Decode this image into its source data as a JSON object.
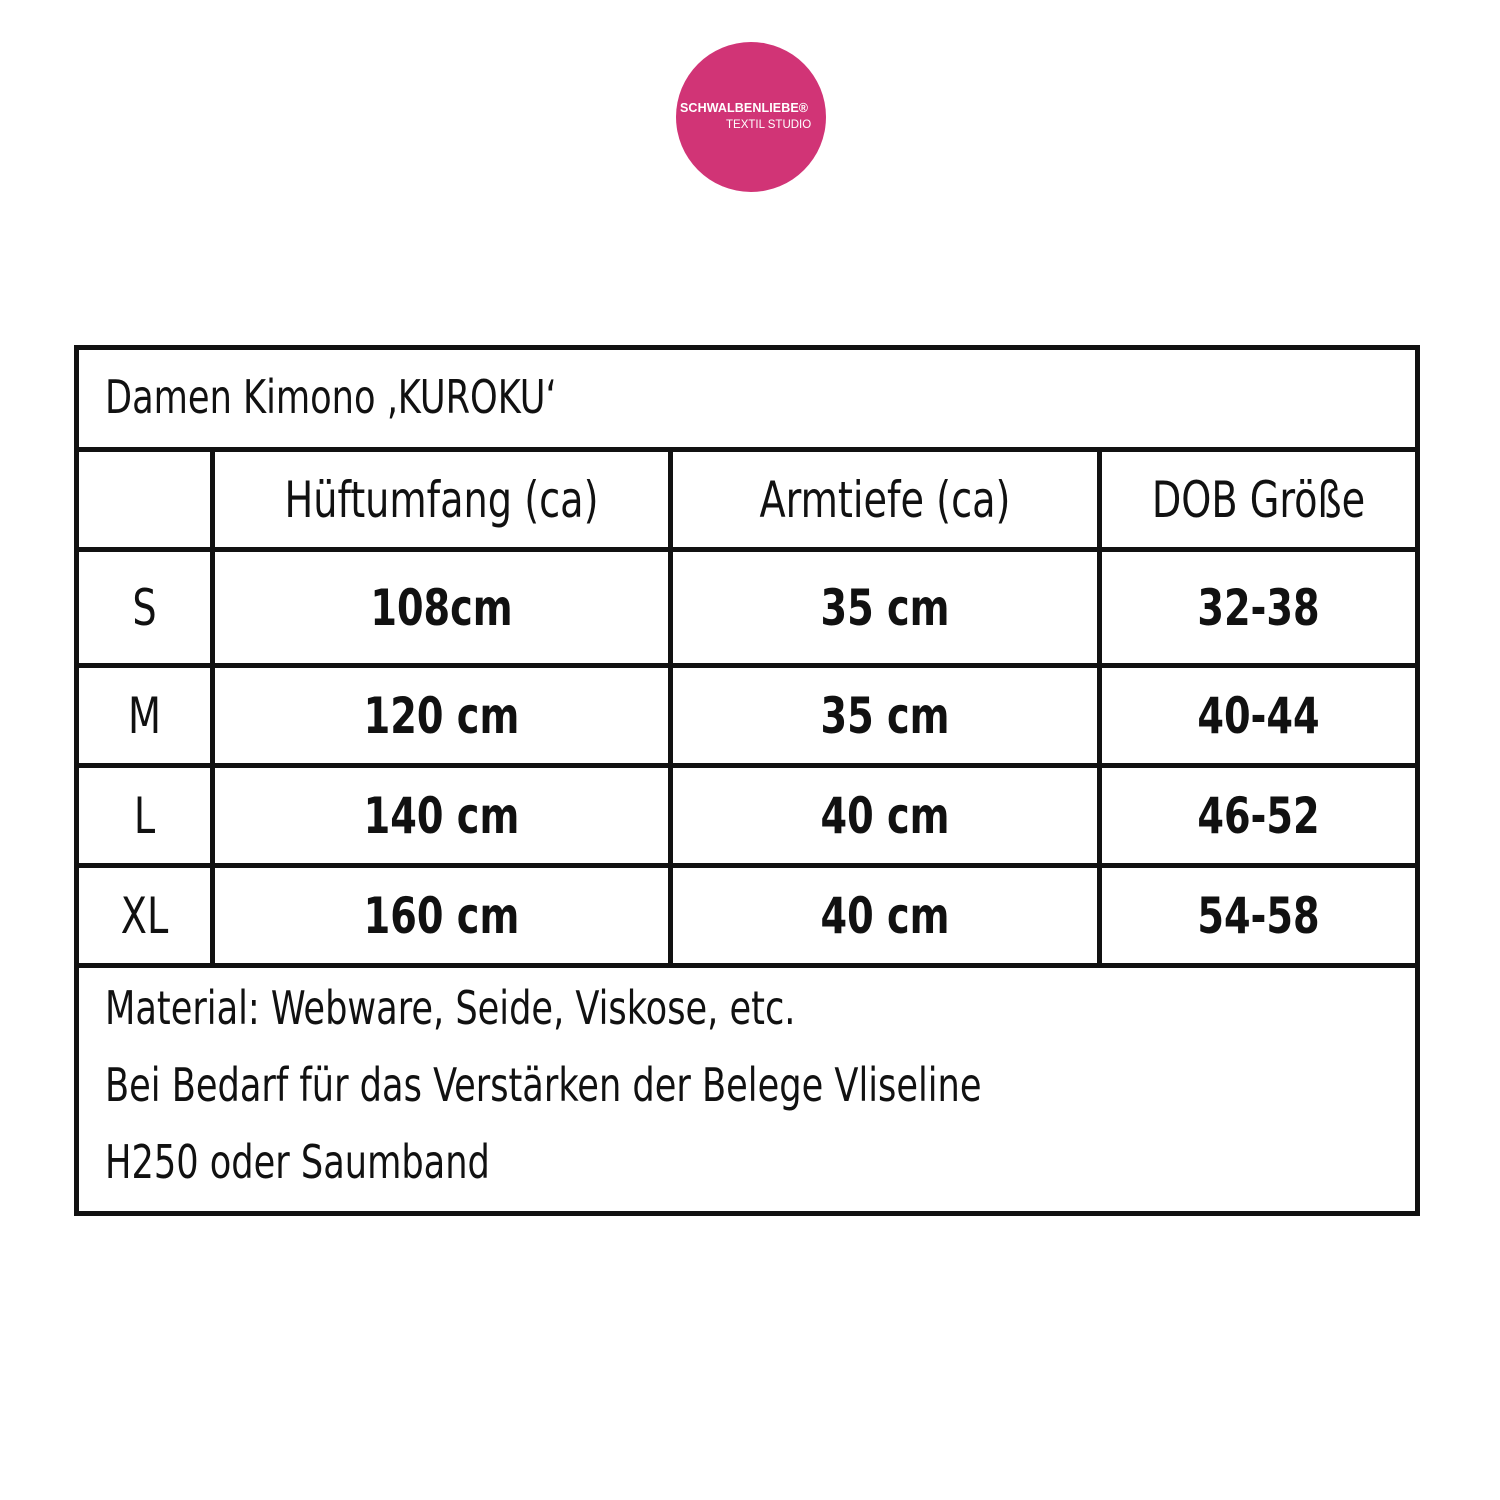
{
  "logo": {
    "line1": "SCHWALBENLIEBE®",
    "line2": "TEXTIL STUDIO",
    "color": "#d13476"
  },
  "table": {
    "title": "Damen Kimono ‚KUROKU‘",
    "headers": [
      "",
      "Hüftumfang (ca)",
      "Armtiefe (ca)",
      "DOB Größe"
    ],
    "rows": [
      [
        "S",
        "108cm",
        "35 cm",
        "32-38"
      ],
      [
        "M",
        "120 cm",
        "35 cm",
        "40-44"
      ],
      [
        "L",
        "140 cm",
        "40 cm",
        "46-52"
      ],
      [
        "XL",
        "160 cm",
        "40 cm",
        "54-58"
      ]
    ],
    "footer": [
      "Material: Webware, Seide, Viskose, etc.",
      "Bei Bedarf für das Verstärken der Belege Vliseline",
      "H250 oder Saumband"
    ]
  }
}
